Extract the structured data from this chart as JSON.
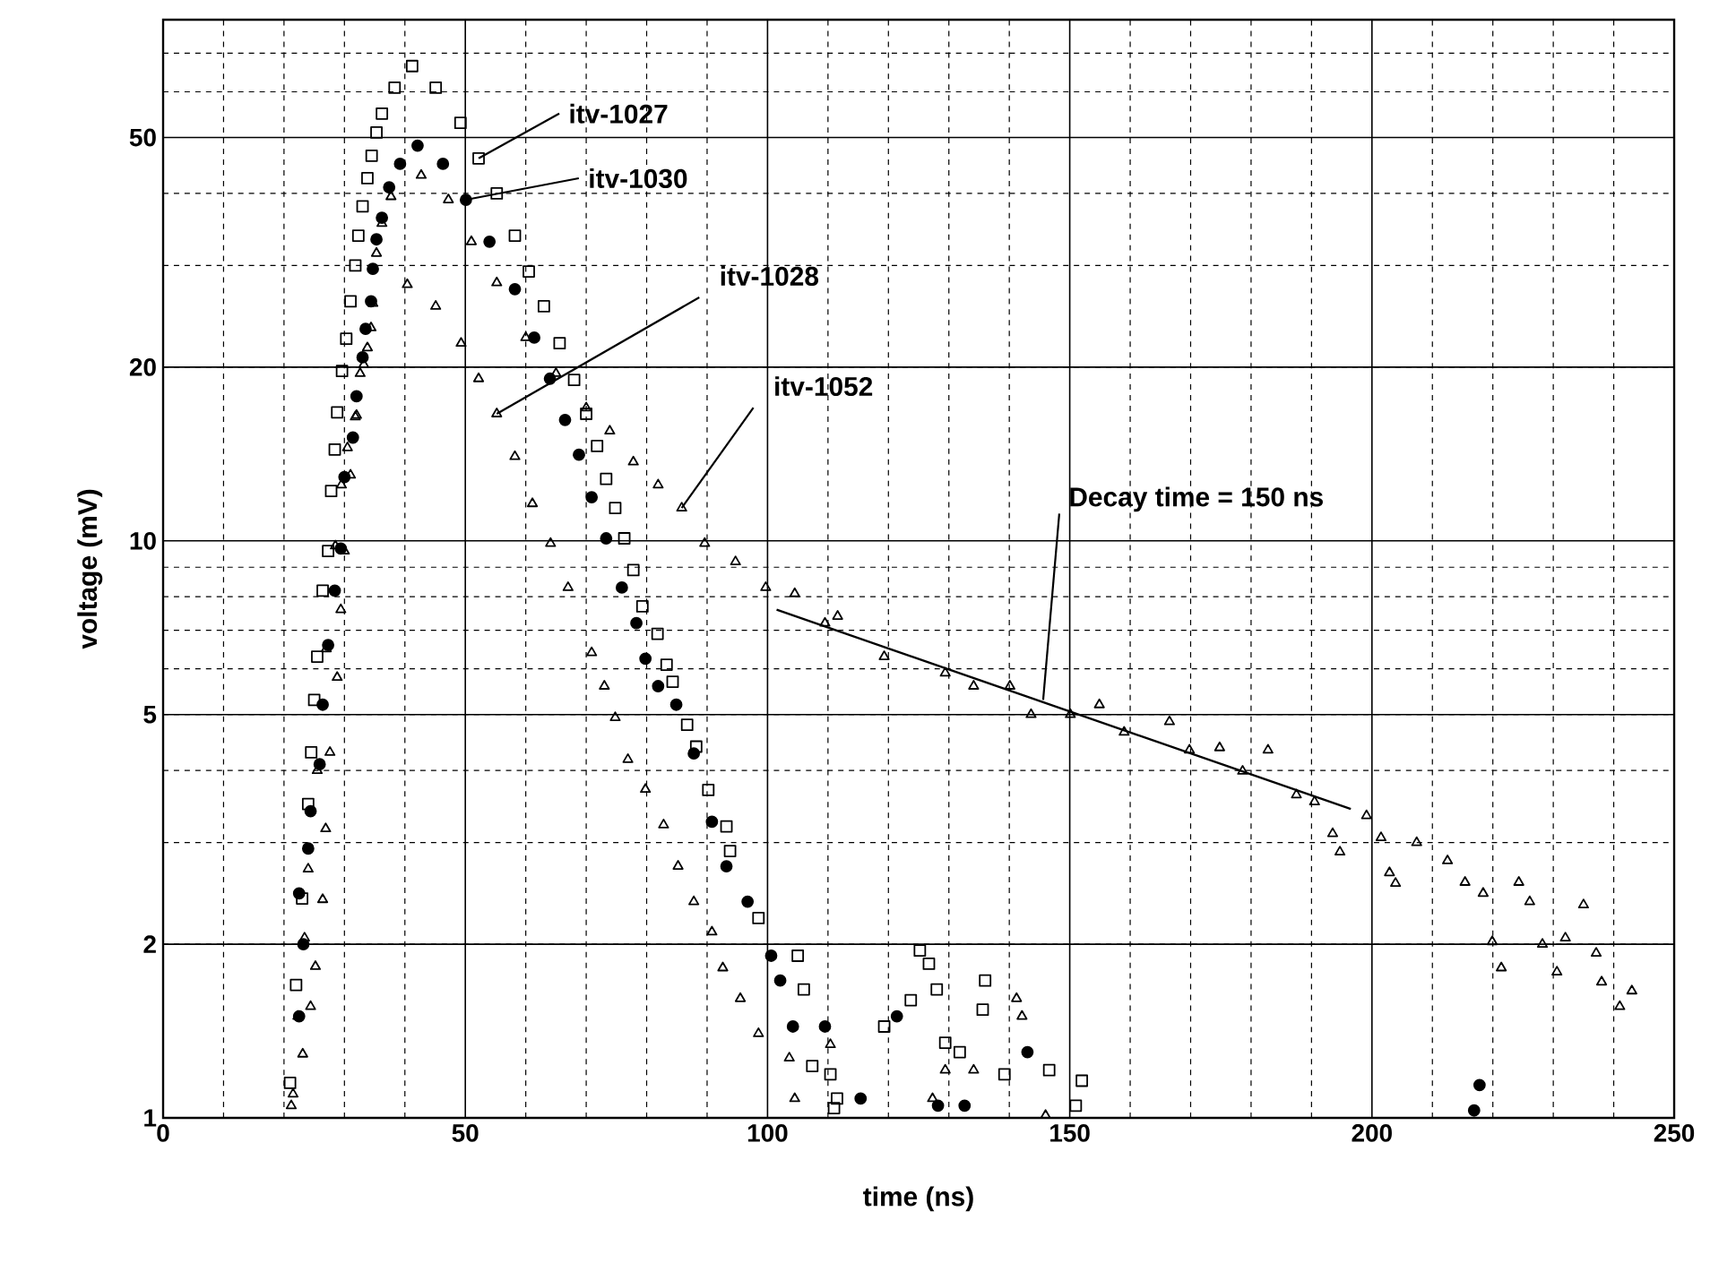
{
  "chart_data": {
    "type": "scatter",
    "xlabel": "time (ns)",
    "ylabel": "voltage (mV)",
    "xlim": [
      0,
      250
    ],
    "xticks": [
      0,
      50,
      100,
      150,
      200,
      250
    ],
    "ylim": [
      1,
      80
    ],
    "yticks": [
      1,
      2,
      5,
      10,
      20,
      50
    ],
    "log": "y",
    "grid": true,
    "series": [
      {
        "name": "itv-1027",
        "color": "#000000",
        "marker": "square",
        "x": [
          21,
          22,
          23,
          24,
          24.5,
          25,
          25.5,
          26.4,
          27.3,
          27.8,
          28.4,
          28.8,
          29.6,
          30.3,
          31,
          31.8,
          32.3,
          33,
          33.8,
          34.5,
          35.3,
          36.2,
          38.3,
          41.2,
          45.1,
          49.2,
          52.2,
          55.2,
          58.2,
          60.5,
          63,
          65.6,
          68,
          70,
          71.8,
          73.3,
          74.8,
          76.3,
          77.8,
          79.3,
          81.8,
          83.3,
          84.3,
          86.7,
          88.2,
          90.2,
          93.2,
          93.8,
          98.5,
          105,
          106,
          107.4,
          110.4,
          111,
          111.5,
          119.3,
          123.7,
          125.2,
          126.7,
          128,
          129.4,
          131.8,
          135.6,
          136,
          139.2,
          146.6,
          151,
          152
        ],
        "values": [
          1.15,
          1.7,
          2.4,
          3.5,
          4.3,
          5.3,
          6.3,
          8.2,
          9.6,
          12.2,
          14.4,
          16.7,
          19.7,
          22.4,
          26,
          30,
          33.8,
          38,
          42.5,
          46.5,
          51,
          55,
          61,
          66.5,
          61,
          53,
          46,
          40,
          33.8,
          29.3,
          25.5,
          22,
          19,
          16.6,
          14.6,
          12.8,
          11.4,
          10.1,
          8.9,
          7.7,
          6.9,
          6.1,
          5.7,
          4.8,
          4.4,
          3.7,
          3.2,
          2.9,
          2.22,
          1.91,
          1.67,
          1.23,
          1.19,
          1.04,
          1.08,
          1.44,
          1.6,
          1.95,
          1.85,
          1.67,
          1.35,
          1.3,
          1.54,
          1.73,
          1.19,
          1.21,
          1.05,
          1.16
        ]
      },
      {
        "name": "itv-1030",
        "color": "#000000",
        "marker": "circle",
        "x": [
          22.5,
          23.2,
          22.5,
          24,
          24.4,
          25.9,
          26.4,
          27.3,
          28.4,
          29.4,
          30,
          31.4,
          32,
          33,
          33.5,
          34.4,
          34.7,
          35.3,
          36.2,
          37.4,
          39.2,
          42.1,
          46.3,
          50.1,
          54,
          58.2,
          61.4,
          64,
          66.5,
          68.8,
          70.9,
          73.3,
          75.9,
          78.3,
          79.8,
          81.9,
          84.9,
          87.8,
          90.8,
          93.2,
          96.7,
          100.6,
          102.1,
          104.2,
          109.5,
          115.4,
          121.4,
          128.2,
          132.6,
          143,
          216.9,
          217.8
        ],
        "values": [
          1.5,
          2.0,
          2.45,
          2.93,
          3.4,
          4.1,
          5.2,
          6.6,
          8.2,
          9.7,
          12.9,
          15.1,
          17.8,
          20.8,
          23.3,
          26,
          29.6,
          33.3,
          36.3,
          41,
          45,
          48.4,
          45,
          39,
          33,
          27.3,
          22.5,
          19.1,
          16.2,
          14.1,
          11.9,
          10.1,
          8.3,
          7.2,
          6.25,
          5.6,
          5.2,
          4.28,
          3.26,
          2.73,
          2.37,
          1.91,
          1.73,
          1.44,
          1.44,
          1.08,
          1.5,
          1.05,
          1.05,
          1.3,
          1.03,
          1.14
        ]
      },
      {
        "name": "itv-1028",
        "color": "#000000",
        "marker": "triangle",
        "x": [
          21.5,
          22.3,
          23.4,
          24,
          25.5,
          27,
          28.5,
          29.5,
          30.5,
          31.8,
          32.6,
          33.8,
          34.7,
          40.4,
          45.1,
          49.3,
          52.2,
          55.2,
          58.2,
          61.1,
          64.1,
          67,
          70.9,
          73,
          74.8,
          76.9,
          79.8,
          82.8,
          85.2,
          87.8,
          90.8,
          92.6,
          95.5,
          98.5,
          103.6,
          104.5,
          110.4,
          127.3,
          129.4,
          134.1,
          141.2,
          142.1,
          146
        ],
        "values": [
          1.1,
          1.5,
          2.05,
          2.7,
          4,
          6.5,
          9.8,
          12.5,
          14.5,
          16.4,
          19.5,
          21.6,
          25.8,
          27.8,
          25.5,
          22,
          19.1,
          16.6,
          14,
          11.6,
          9.9,
          8.3,
          6.4,
          5.6,
          4.94,
          4.18,
          3.71,
          3.22,
          2.73,
          2.37,
          2.1,
          1.82,
          1.61,
          1.4,
          1.27,
          1.08,
          1.34,
          1.08,
          1.21,
          1.21,
          1.61,
          1.5,
          1.01
        ]
      },
      {
        "name": "itv-1052",
        "color": "#000000",
        "marker": "triangle",
        "x": [
          21.2,
          23.1,
          24.4,
          25.2,
          26.4,
          26.9,
          27.6,
          28.8,
          29.4,
          30,
          31,
          32,
          33.2,
          34.4,
          35.3,
          36.2,
          37.7,
          42.7,
          47.2,
          51,
          55.2,
          60,
          65,
          70,
          73.9,
          77.8,
          81.9,
          85.8,
          89.6,
          94.7,
          99.7,
          104.5,
          109.5,
          111.6,
          119.3,
          129.4,
          134.1,
          140.1,
          143.6,
          150.1,
          154.9,
          159,
          166.5,
          169.8,
          174.8,
          178.6,
          182.8,
          187.5,
          190.5,
          193.5,
          194.7,
          199.1,
          201.5,
          202.9,
          203.9,
          207.4,
          212.5,
          215.4,
          218.4,
          219.9,
          221.4,
          224.3,
          226.1,
          228.2,
          230.6,
          232,
          235,
          237.1,
          238,
          241,
          243
        ],
        "values": [
          1.05,
          1.29,
          1.56,
          1.83,
          2.39,
          3.17,
          4.3,
          5.8,
          7.6,
          9.6,
          13,
          16.5,
          20.2,
          23.4,
          31.5,
          35.5,
          39.5,
          43,
          39,
          33,
          28,
          22.5,
          19.5,
          17,
          15.5,
          13.7,
          12.5,
          11.4,
          9.9,
          9.2,
          8.3,
          8.1,
          7.2,
          7.4,
          6.3,
          5.9,
          5.6,
          5.6,
          5.0,
          5.0,
          5.2,
          4.66,
          4.86,
          4.34,
          4.38,
          3.99,
          4.34,
          3.63,
          3.53,
          3.11,
          2.89,
          3.34,
          3.06,
          2.66,
          2.55,
          3.0,
          2.79,
          2.56,
          2.45,
          2.02,
          1.82,
          2.56,
          2.37,
          2.0,
          1.79,
          2.05,
          2.34,
          1.93,
          1.72,
          1.56,
          1.66
        ]
      },
      {
        "type": "line",
        "color": "#000000",
        "marker": "none",
        "line_style": "solid",
        "x": [
          101.5,
          196.5
        ],
        "values": [
          7.6,
          3.43
        ]
      }
    ],
    "annotations": [
      {
        "text": "Decay time = 150 ns",
        "x": 145.6,
        "y": 5.3
      }
    ]
  }
}
